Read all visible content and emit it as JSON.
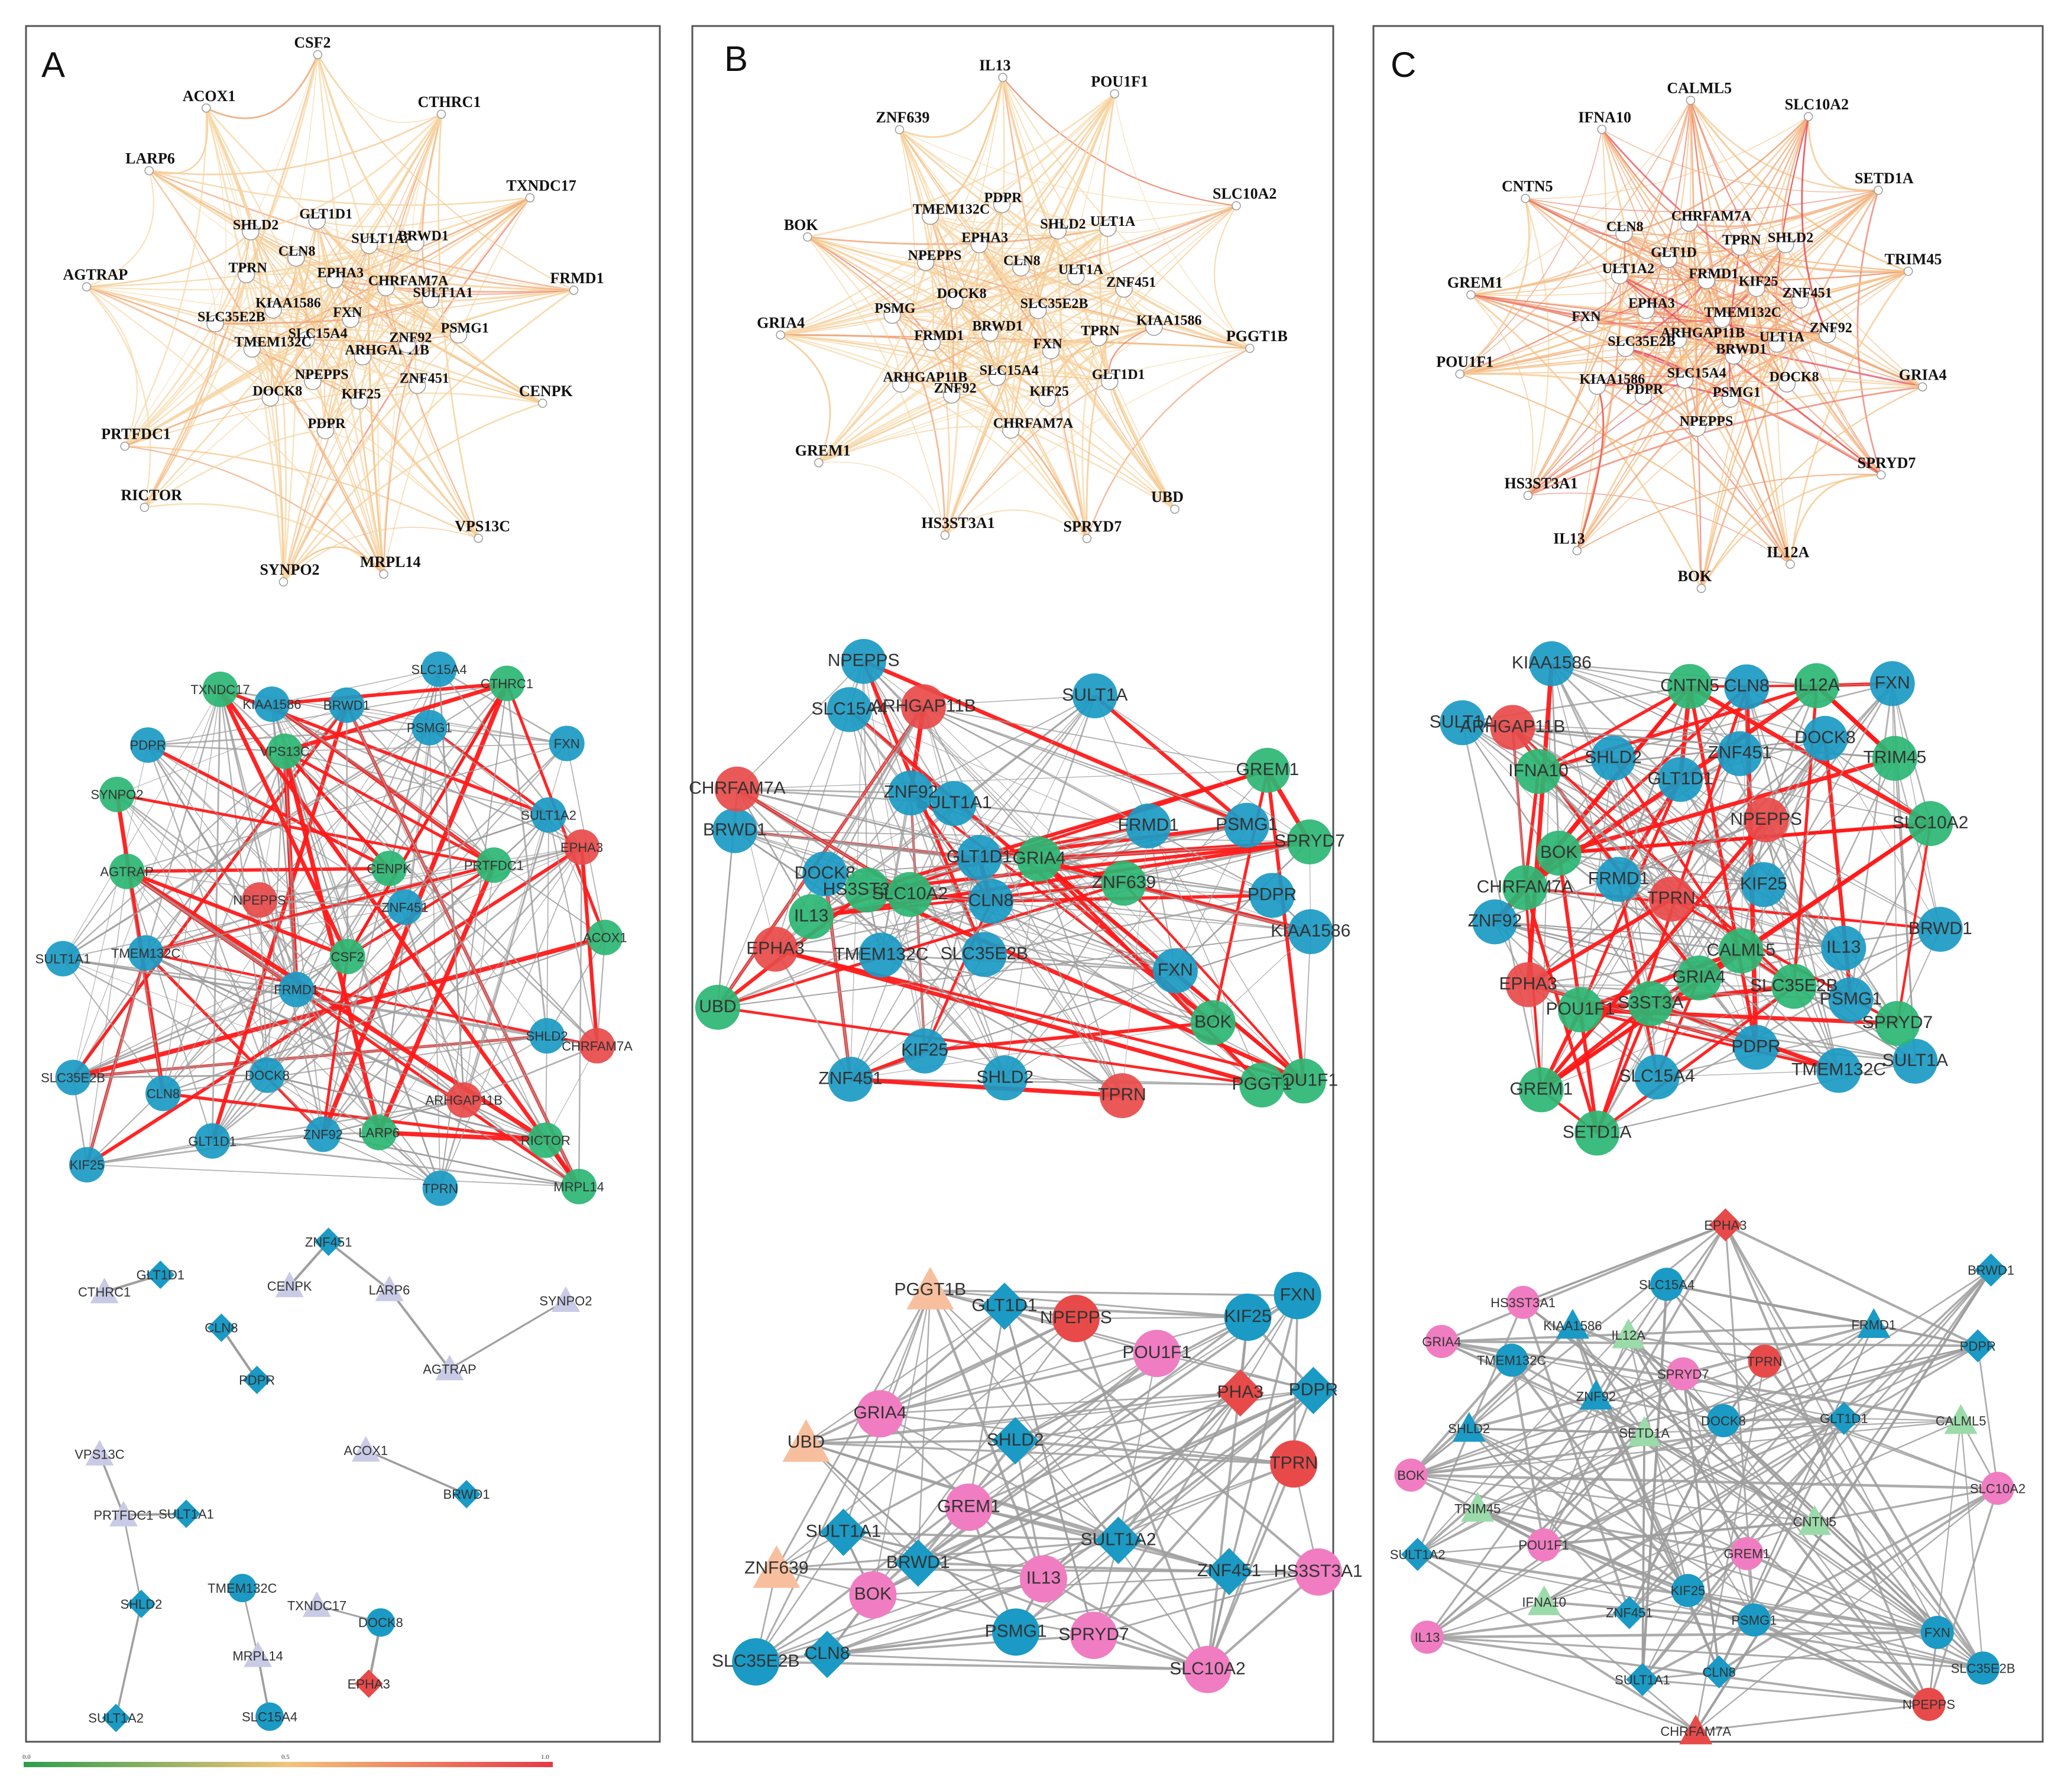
{
  "figure": {
    "colors": {
      "tier_blue": "#1a9ac4",
      "tier_light_blue": "#4db3d9",
      "tier_green": "#2bb673",
      "tier_red": "#e84a4a",
      "tier_salmon": "#ef6b6b",
      "pink": "#f07dc1",
      "peach": "#f8bf9e",
      "lavender": "#c9cbe6",
      "light_green": "#9bdba9",
      "edge_gray": "#9e9e9e",
      "edge_red": "#ff1a1a",
      "frame": "#555555"
    },
    "scale_bar": {
      "min_label": "0.0",
      "mid_label": "0.5",
      "max_label": "1.0",
      "gradient": [
        "#2e9e4e",
        "#f3c37a",
        "#e63a45"
      ]
    }
  },
  "panels": [
    {
      "letter": "A",
      "top_network": {
        "outer_nodes": [
          "CSF2",
          "CTHRC1",
          "TXNDC17",
          "FRMD1",
          "CENPK",
          "VPS13C",
          "MRPL14",
          "SYNPO2",
          "RICTOR",
          "PRTFDC1",
          "AGTRAP",
          "LARP6",
          "ACOX1"
        ],
        "inner_nodes": [
          "FXN",
          "SLC15A4",
          "EPHA3",
          "ARHGAP11B",
          "KIAA1586",
          "CHRFAM7A",
          "NPEPPS",
          "CLN8",
          "ZNF92",
          "TMEM132C",
          "SULT1A2",
          "KIF25",
          "TPRN",
          "SULT1A1",
          "DOCK8",
          "GLT1D1",
          "ZNF451",
          "SLC35E2B",
          "BRWD1",
          "PDPR",
          "SHLD2",
          "PSMG1"
        ]
      },
      "middle_network": {
        "blue": [
          "FRMD1",
          "PDPR",
          "ZNF451",
          "SHLD2",
          "SULT1A2",
          "PSMG1",
          "SLC35E2B",
          "TMEM132C",
          "GLT1D1",
          "SLC15A4",
          "KIF25",
          "BRWD1",
          "DOCK8",
          "SULT1A1",
          "TPRN",
          "FXN",
          "CLN8",
          "ZNF92",
          "KIAA1586"
        ],
        "green": [
          "CENPK",
          "TXNDC17",
          "SYNPO2",
          "VPS13C",
          "CTHRC1",
          "PRTFDC1",
          "ACOX1",
          "AGTRAP",
          "LARP6",
          "RICTOR",
          "MRPL14",
          "CSF2"
        ],
        "red": [
          "EPHA3",
          "NPEPPS",
          "CHRFAM7A",
          "ARHGAP11B"
        ]
      },
      "bottom_network": {
        "red_diamond": [
          "EPHA3"
        ],
        "blue_diamond": [
          "SULT1A2",
          "SULT1A1",
          "CLN8",
          "PDPR",
          "GLT1D1",
          "BRWD1",
          "ZNF451",
          "SHLD2"
        ],
        "blue_circle": [
          "DOCK8",
          "SLC15A4",
          "TMEM132C"
        ],
        "lavender_triangle": [
          "LARP6",
          "ACOX1",
          "TXNDC17",
          "PRTFDC1",
          "SYNPO2",
          "AGTRAP",
          "MRPL14",
          "VPS13C",
          "CENPK",
          "CTHRC1"
        ]
      }
    },
    {
      "letter": "B",
      "top_network": {
        "outer_nodes": [
          "IL13",
          "POU1F1",
          "SLC10A2",
          "PGGT1B",
          "UBD",
          "SPRYD7",
          "HS3ST3A1",
          "GREM1",
          "GRIA4",
          "BOK",
          "ZNF639"
        ],
        "inner_nodes": [
          "SLC35E2B",
          "BRWD1",
          "CLN8",
          "FXN",
          "DOCK8",
          "ULT1A",
          "SLC15A4",
          "EPHA3",
          "TPRN",
          "FRMD1",
          "SHLD2",
          "KIF25",
          "NPEPPS",
          "ZNF451",
          "ZNF92",
          "PDPR",
          "GLT1D1",
          "PSMG",
          "ULT1A",
          "CHRFAM7A",
          "TMEM132C",
          "KIAA1586",
          "ARHGAP11B"
        ]
      },
      "middle_network": {
        "blue": [
          "GLT1D1",
          "SULT1A1",
          "TMEM132C",
          "SLC15A4",
          "SULT1A",
          "FRMD1",
          "ZNF92",
          "NPEPPS",
          "BRWD1",
          "PDPR",
          "KIF25",
          "ZNF451",
          "SHLD2",
          "PSMG1",
          "KIAA1586",
          "SLC35E2B",
          "DOCK8",
          "FXN",
          "CLN8"
        ],
        "green": [
          "ZNF639",
          "POU1F1",
          "GREM1",
          "PGGT1",
          "BOK",
          "IL13",
          "HS3ST3A1",
          "SPRYD7",
          "GRIA4",
          "UBD",
          "SLC10A2"
        ],
        "red": [
          "EPHA3",
          "ARHGAP11B",
          "TPRN",
          "CHRFAM7A"
        ]
      },
      "bottom_network": {
        "red_circle": [
          "NPEPPS",
          "TPRN"
        ],
        "red_diamond": [
          "PHA3"
        ],
        "blue_circle": [
          "KIF25",
          "FXN",
          "SLC35E2B",
          "PSMG1"
        ],
        "blue_diamond": [
          "GLT1D1",
          "PDPR",
          "SHLD2",
          "BRWD1",
          "SULT1A1",
          "CLN8",
          "ZNF451",
          "SULT1A2"
        ],
        "pink_circle": [
          "GRIA4",
          "BOK",
          "POU1F1",
          "SLC10A2",
          "SPRYD7",
          "GREM1",
          "HS3ST3A1",
          "IL13"
        ],
        "peach_triangle": [
          "ZNF639",
          "PGGT1B",
          "UBD"
        ]
      }
    },
    {
      "letter": "C",
      "top_network": {
        "outer_nodes": [
          "CALML5",
          "SLC10A2",
          "SETD1A",
          "TRIM45",
          "GRIA4",
          "SPRYD7",
          "IL12A",
          "BOK",
          "IL13",
          "HS3ST3A1",
          "POU1F1",
          "GREM1",
          "CNTN5",
          "IFNA10"
        ],
        "inner_nodes": [
          "TMEM132C",
          "ARHGAP11B",
          "FRMD1",
          "BRWD1",
          "EPHA3",
          "KIF25",
          "SLC15A4",
          "GLT1D",
          "ULT1A",
          "SLC35E2B",
          "TPRN",
          "PSMG1",
          "ULT1A2",
          "ZNF451",
          "PDPR",
          "CHRFAM7A",
          "DOCK8",
          "FXN",
          "SHLD2",
          "NPEPPS",
          "CLN8",
          "ZNF92",
          "KIAA1586"
        ]
      },
      "middle_network": {
        "blue": [
          "GLT1D1",
          "KIF25",
          "SULT1A",
          "SLC15A4",
          "IL13",
          "PDPR",
          "FRMD1",
          "TMEM132C",
          "KIAA1586",
          "ZNF92",
          "BRWD1",
          "PSMG1",
          "CLN8",
          "ZNF451",
          "DOCK8",
          "SHLD2",
          "SULT1A",
          "FXN"
        ],
        "green": [
          "GRIA4",
          "BOK",
          "POU1F1",
          "IL12A",
          "SPRYD7",
          "TRIM45",
          "SLC35E2B",
          "SLC10A2",
          "CNTN5",
          "GREM1",
          "CALML5",
          "CHRFAM7A",
          "SETD1A",
          "S3ST3A",
          "IFNA10"
        ],
        "red": [
          "TPRN",
          "EPHA3",
          "NPEPPS",
          "ARHGAP11B"
        ]
      },
      "bottom_network": {
        "red_circle": [
          "TPRN",
          "NPEPPS"
        ],
        "red_diamond": [
          "EPHA3"
        ],
        "red_triangle": [
          "CHRFAM7A"
        ],
        "blue_circle": [
          "PSMG1",
          "SLC35E2B",
          "TMEM132C",
          "SLC15A4",
          "DOCK8",
          "FXN",
          "KIF25"
        ],
        "blue_diamond": [
          "SULT1A2",
          "GLT1D1",
          "ZNF451",
          "SULT1A1",
          "BRWD1",
          "PDPR",
          "CLN8"
        ],
        "blue_triangle": [
          "FRMD1",
          "ZNF92",
          "SHLD2",
          "KIAA1586"
        ],
        "pink_circle": [
          "IL13",
          "HS3ST3A1",
          "SPRYD7",
          "POU1F1",
          "GREM1",
          "SLC10A2",
          "GRIA4",
          "BOK"
        ],
        "light_green_triangle": [
          "CALML5",
          "IFNA10",
          "SETD1A",
          "IL12A",
          "CNTN5",
          "TRIM45"
        ]
      }
    }
  ]
}
